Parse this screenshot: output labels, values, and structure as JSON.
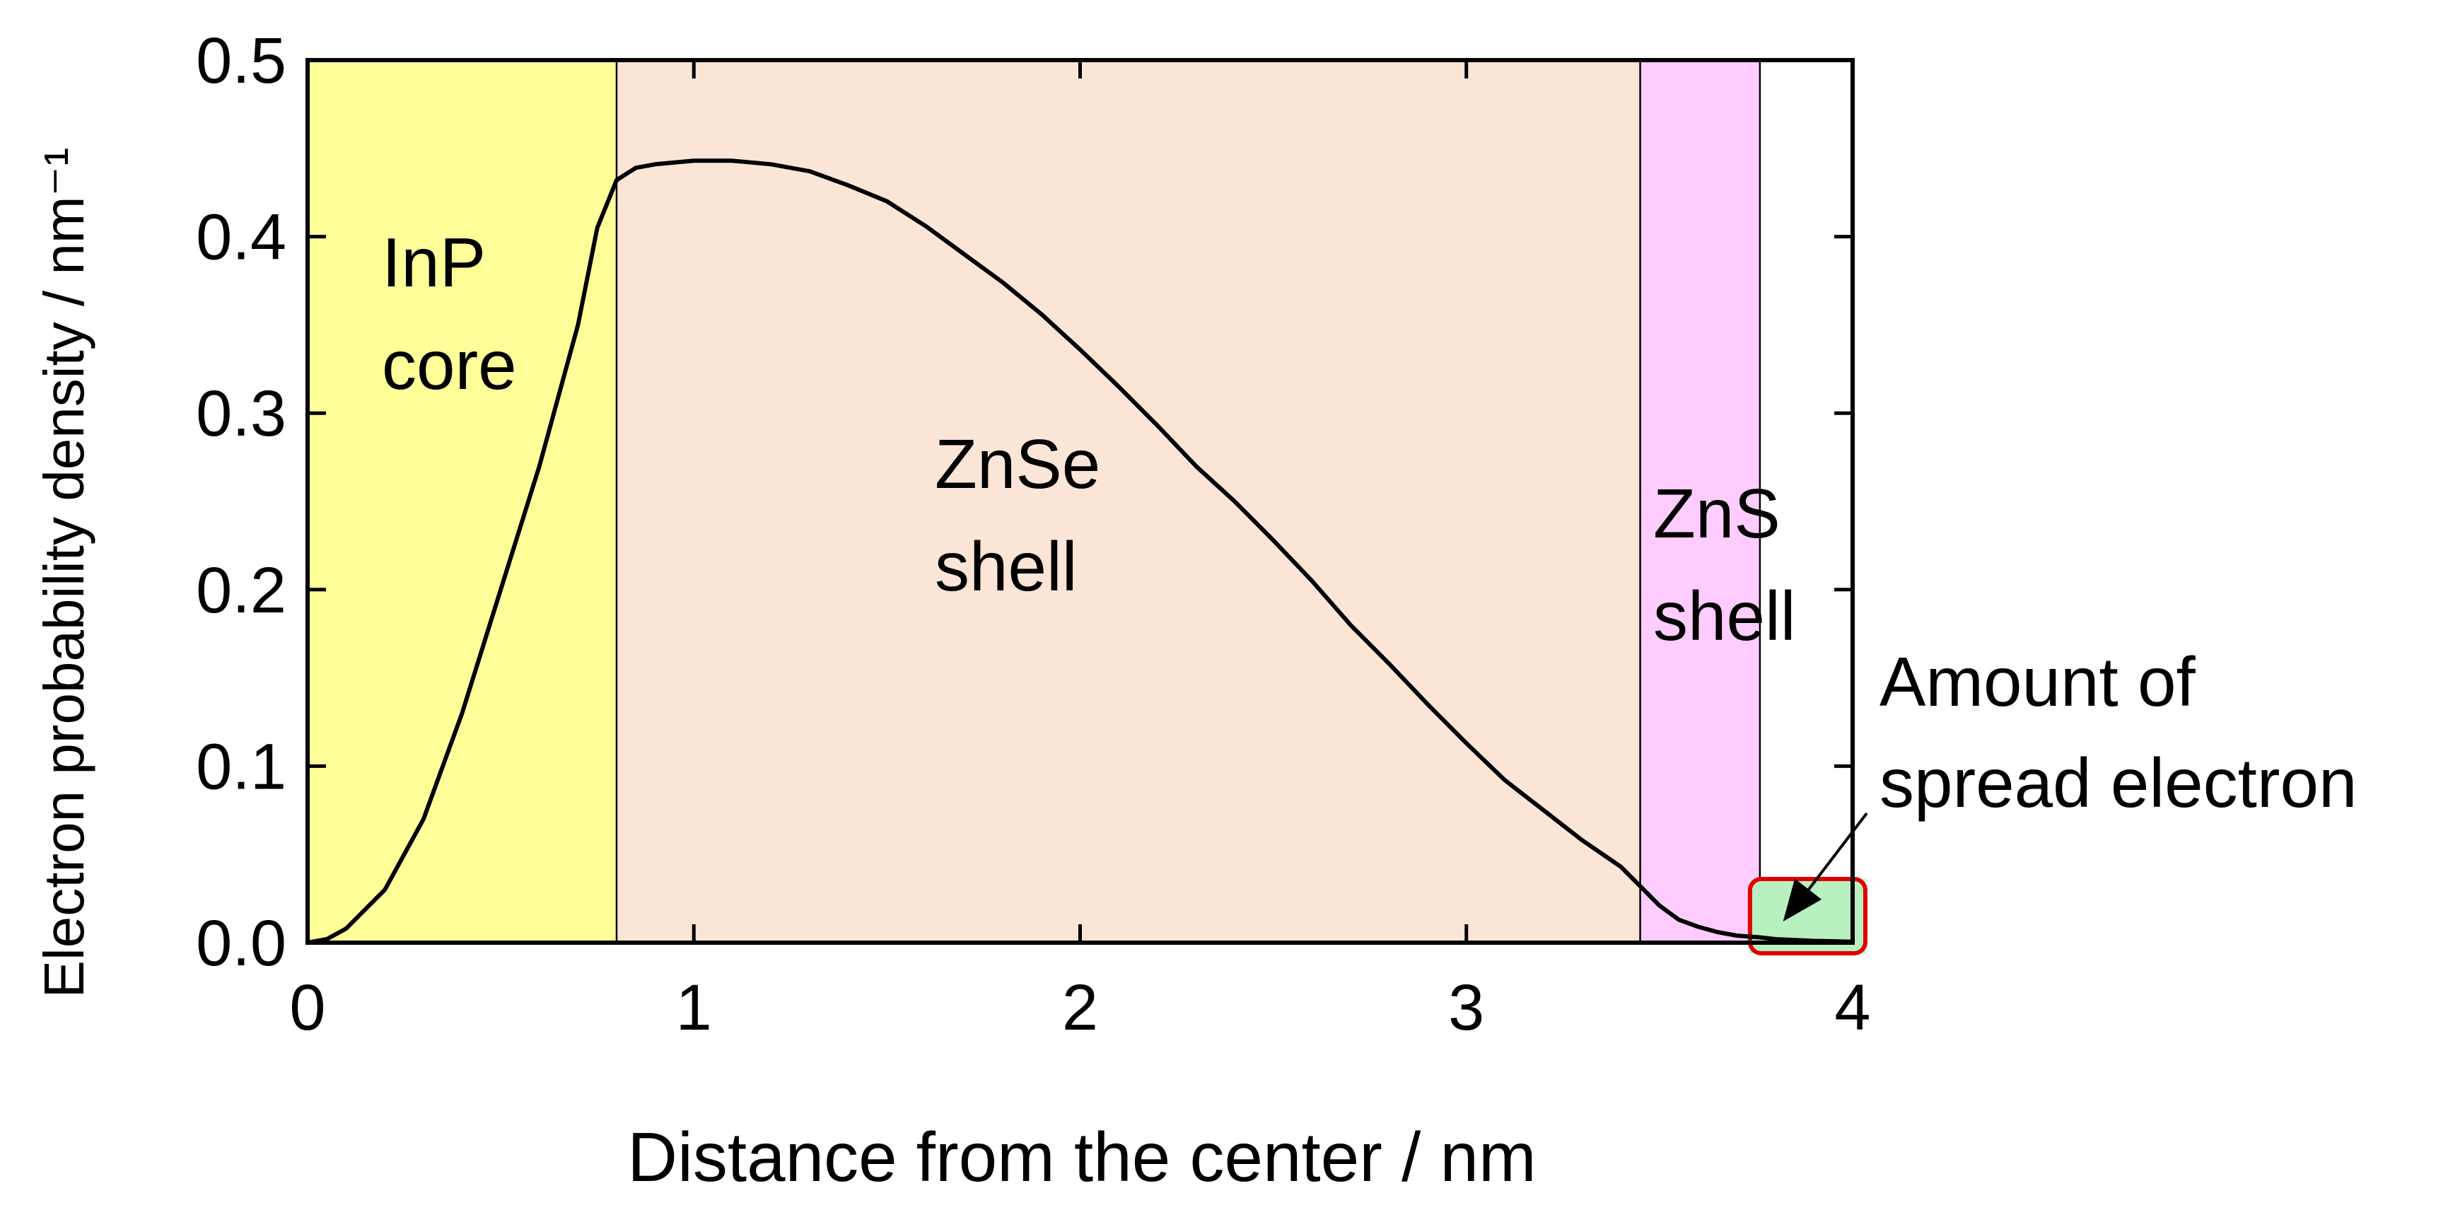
{
  "chart_data": {
    "type": "area",
    "xlabel": "Distance from the center / nm",
    "ylabel": "Electron probability density / nm⁻¹",
    "xlim": [
      0,
      4
    ],
    "ylim": [
      0,
      0.5
    ],
    "x_ticks": [
      "0",
      "1",
      "2",
      "3",
      "4"
    ],
    "y_ticks": [
      "0.0",
      "0.1",
      "0.2",
      "0.3",
      "0.4",
      "0.5"
    ],
    "grid": false,
    "regions": [
      {
        "id": "inp-core",
        "label_lines": [
          "InP",
          "core"
        ],
        "x_start": 0,
        "x_end": 0.8,
        "color": "#ffff99"
      },
      {
        "id": "znse-shell",
        "label_lines": [
          "ZnSe",
          "shell"
        ],
        "x_start": 0.8,
        "x_end": 3.45,
        "color": "#fbe5d6"
      },
      {
        "id": "zns-shell",
        "label_lines": [
          "ZnS",
          "shell"
        ],
        "x_start": 3.45,
        "x_end": 3.76,
        "color": "#ffccff"
      }
    ],
    "highlight": {
      "x_start": 3.76,
      "x_end": 4.0,
      "fill": "#b8f0c0",
      "border": "#e00000"
    },
    "annotation": {
      "lines": [
        "Amount of",
        "spread electron"
      ],
      "target_x": 3.82,
      "target_y": 0.012
    },
    "series": [
      {
        "color": "#000000",
        "x": [
          0,
          0.05,
          0.1,
          0.2,
          0.3,
          0.4,
          0.5,
          0.6,
          0.7,
          0.75,
          0.8,
          0.85,
          0.9,
          1.0,
          1.1,
          1.2,
          1.3,
          1.4,
          1.5,
          1.6,
          1.7,
          1.8,
          1.9,
          2.0,
          2.1,
          2.2,
          2.3,
          2.4,
          2.5,
          2.6,
          2.7,
          2.8,
          2.9,
          3.0,
          3.1,
          3.2,
          3.3,
          3.4,
          3.45,
          3.5,
          3.55,
          3.6,
          3.65,
          3.7,
          3.76,
          3.8,
          3.85,
          3.9,
          3.95,
          4.0
        ],
        "y": [
          0,
          0.002,
          0.008,
          0.03,
          0.07,
          0.13,
          0.2,
          0.27,
          0.35,
          0.405,
          0.432,
          0.439,
          0.441,
          0.443,
          0.443,
          0.441,
          0.437,
          0.429,
          0.42,
          0.406,
          0.39,
          0.374,
          0.356,
          0.336,
          0.315,
          0.293,
          0.27,
          0.25,
          0.228,
          0.205,
          0.18,
          0.158,
          0.135,
          0.113,
          0.092,
          0.075,
          0.058,
          0.043,
          0.032,
          0.021,
          0.013,
          0.009,
          0.006,
          0.004,
          0.003,
          0.002,
          0.0015,
          0.001,
          0.0008,
          0.0005
        ]
      }
    ]
  }
}
